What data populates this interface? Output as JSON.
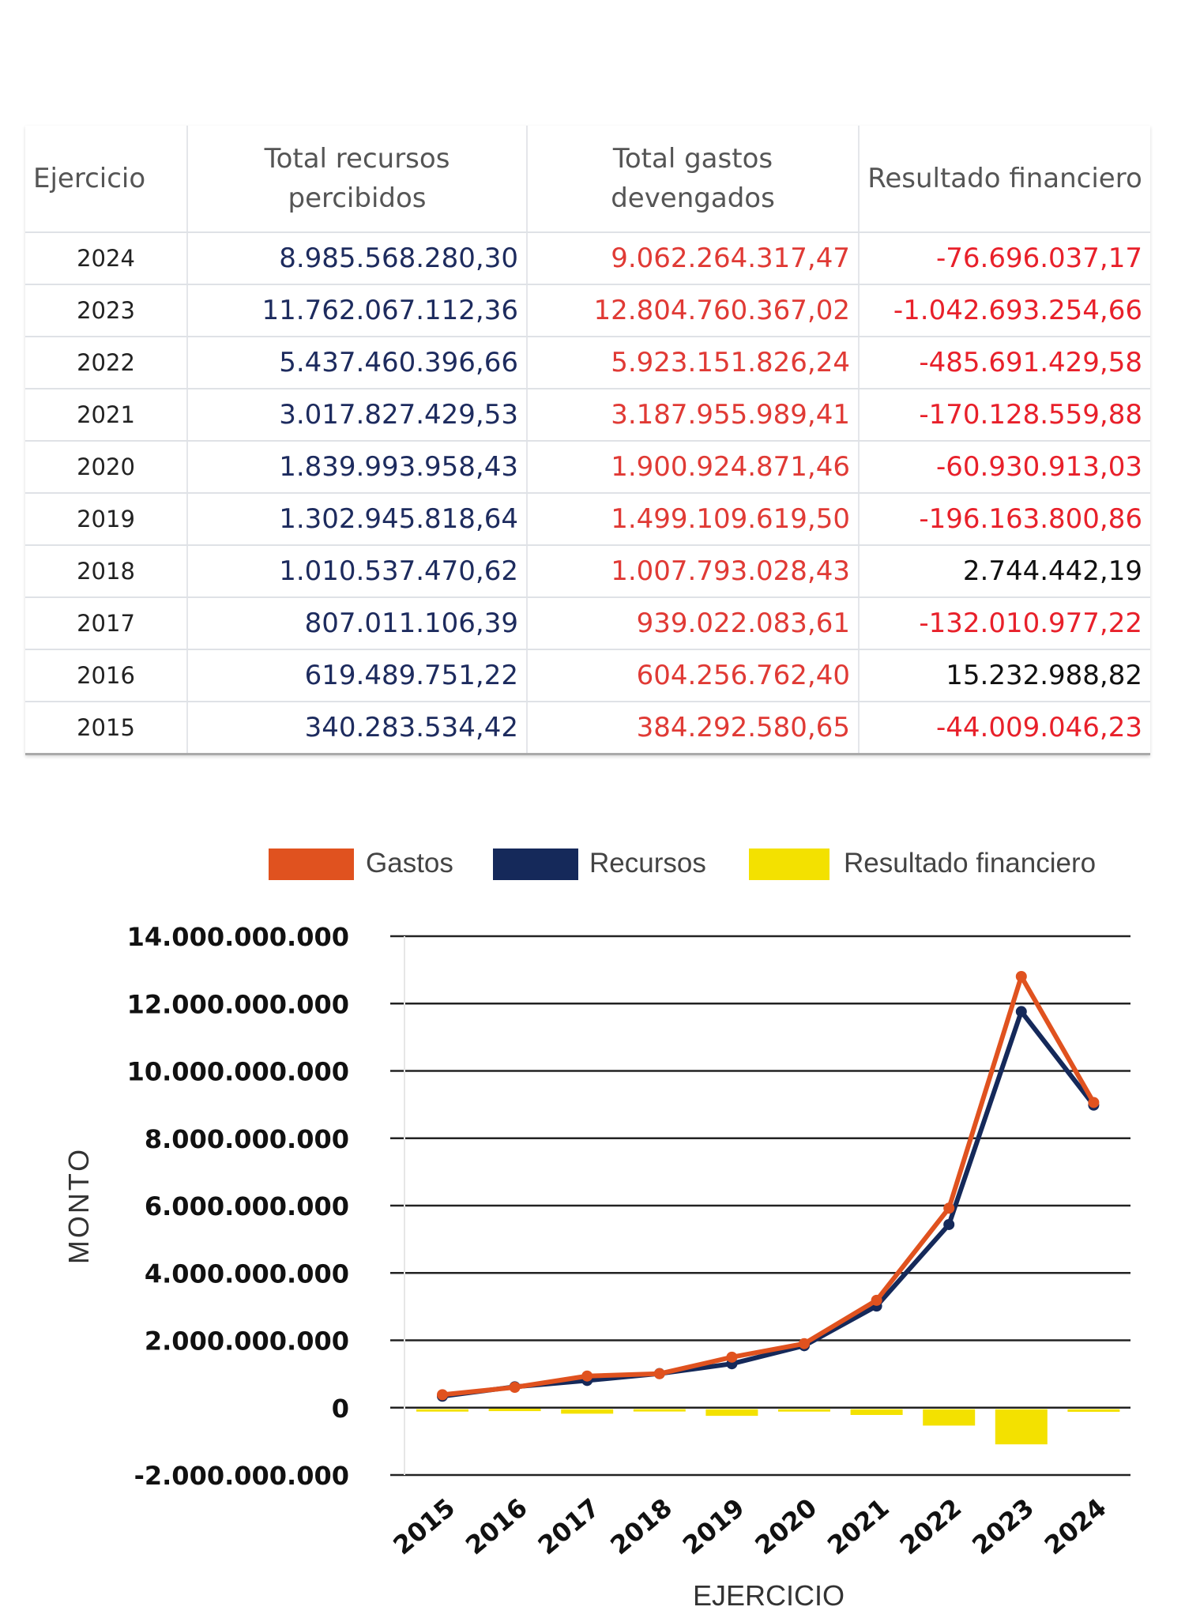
{
  "table": {
    "headers": [
      "Ejercicio",
      "Total recursos percibidos",
      "Total gastos devengados",
      "Resultado financiero"
    ],
    "rows": [
      [
        "2024",
        "8.985.568.280,30",
        "9.062.264.317,47",
        "-76.696.037,17"
      ],
      [
        "2023",
        "11.762.067.112,36",
        "12.804.760.367,02",
        "-1.042.693.254,66"
      ],
      [
        "2022",
        "5.437.460.396,66",
        "5.923.151.826,24",
        "-485.691.429,58"
      ],
      [
        "2021",
        "3.017.827.429,53",
        "3.187.955.989,41",
        "-170.128.559,88"
      ],
      [
        "2020",
        "1.839.993.958,43",
        "1.900.924.871,46",
        "-60.930.913,03"
      ],
      [
        "2019",
        "1.302.945.818,64",
        "1.499.109.619,50",
        "-196.163.800,86"
      ],
      [
        "2018",
        "1.010.537.470,62",
        "1.007.793.028,43",
        "2.744.442,19"
      ],
      [
        "2017",
        "807.011.106,39",
        "939.022.083,61",
        "-132.010.977,22"
      ],
      [
        "2016",
        "619.489.751,22",
        "604.256.762,40",
        "15.232.988,82"
      ],
      [
        "2015",
        "340.283.534,42",
        "384.292.580,65",
        "-44.009.046,23"
      ]
    ]
  },
  "chart_data": {
    "type": "line",
    "xlabel": "EJERCICIO",
    "ylabel": "MONTO",
    "ylim": [
      -2000000000,
      14000000000
    ],
    "grid": true,
    "legend": "top",
    "categories": [
      "2015",
      "2016",
      "2017",
      "2018",
      "2019",
      "2020",
      "2021",
      "2022",
      "2023",
      "2024"
    ],
    "yticks": [
      "14.000.000.000",
      "12.000.000.000",
      "10.000.000.000",
      "8.000.000.000",
      "6.000.000.000",
      "4.000.000.000",
      "2.000.000.000",
      "0",
      "-2.000.000.000"
    ],
    "ytick_values": [
      14000000000,
      12000000000,
      10000000000,
      8000000000,
      6000000000,
      4000000000,
      2000000000,
      0,
      -2000000000
    ],
    "series": [
      {
        "name": "Gastos",
        "kind": "line",
        "color": "#e0521f",
        "values": [
          384292580.65,
          604256762.4,
          939022083.61,
          1007793028.43,
          1499109619.5,
          1900924871.46,
          3187955989.41,
          5923151826.24,
          12804760367.02,
          9062264317.47
        ]
      },
      {
        "name": "Recursos",
        "kind": "line",
        "color": "#15295a",
        "values": [
          340283534.42,
          619489751.22,
          807011106.39,
          1010537470.62,
          1302945818.64,
          1839993958.43,
          3017827429.53,
          5437460396.66,
          11762067112.36,
          8985568280.3
        ]
      },
      {
        "name": "Resultado financiero",
        "kind": "bar",
        "color": "#f3e100",
        "values": [
          -44009046.23,
          15232988.82,
          -132010977.22,
          2744442.19,
          -196163800.86,
          -60930913.03,
          -170128559.88,
          -485691429.58,
          -1042693254.66,
          -76696037.17
        ]
      }
    ]
  }
}
